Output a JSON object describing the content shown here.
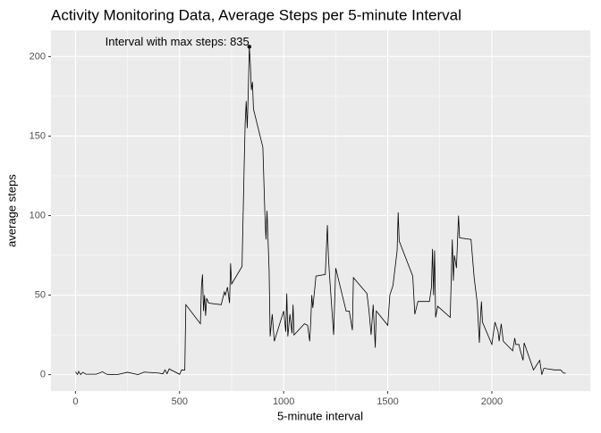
{
  "chart_data": {
    "type": "line",
    "title": "Activity Monitoring Data, Average Steps per 5-minute Interval",
    "x_label": "5-minute interval",
    "y_label": "average steps",
    "annotation": "Interval with max steps:  835",
    "max_point": {
      "x": 835,
      "y": 206.17
    },
    "x": [
      0,
      10,
      15,
      25,
      35,
      50,
      100,
      130,
      150,
      200,
      250,
      300,
      330,
      400,
      420,
      430,
      440,
      450,
      500,
      510,
      525,
      530,
      600,
      605,
      610,
      615,
      620,
      625,
      630,
      640,
      700,
      715,
      720,
      730,
      740,
      745,
      750,
      800,
      810,
      815,
      820,
      825,
      830,
      835,
      840,
      845,
      850,
      855,
      900,
      910,
      915,
      920,
      930,
      935,
      945,
      955,
      1000,
      1010,
      1015,
      1020,
      1030,
      1040,
      1045,
      1050,
      1100,
      1115,
      1125,
      1130,
      1135,
      1140,
      1150,
      1155,
      1200,
      1210,
      1215,
      1220,
      1240,
      1250,
      1300,
      1315,
      1330,
      1335,
      1400,
      1410,
      1420,
      1430,
      1440,
      1445,
      1500,
      1510,
      1525,
      1545,
      1550,
      1555,
      1620,
      1625,
      1630,
      1645,
      1700,
      1710,
      1715,
      1720,
      1725,
      1730,
      1740,
      1800,
      1810,
      1815,
      1820,
      1830,
      1840,
      1845,
      1900,
      1915,
      1930,
      1940,
      1945,
      1950,
      1955,
      2000,
      2015,
      2030,
      2035,
      2045,
      2055,
      2100,
      2110,
      2115,
      2130,
      2135,
      2150,
      2155,
      2200,
      2225,
      2230,
      2240,
      2250,
      2300,
      2315,
      2330,
      2345,
      2355
    ],
    "series": [
      {
        "name": "average steps",
        "color": "#000000",
        "values": [
          1.7,
          0.1,
          2,
          0,
          1.5,
          0.3,
          0.3,
          1.8,
          0.2,
          0,
          1.5,
          0,
          1.6,
          1,
          0.5,
          3,
          0.6,
          3.6,
          0.2,
          3,
          2.9,
          44,
          32,
          55,
          63,
          40,
          50,
          37,
          48,
          45,
          44,
          52,
          50,
          55,
          45,
          70,
          57,
          68,
          130,
          158,
          172,
          155,
          178,
          206.17,
          195,
          179,
          184,
          167,
          143,
          100,
          85,
          103,
          66,
          24,
          38,
          21,
          40,
          27,
          51,
          24,
          38,
          26,
          44,
          25,
          32,
          31,
          21,
          33,
          50,
          42,
          55,
          62,
          63,
          94,
          74,
          63,
          25,
          67,
          40,
          40,
          28,
          61,
          51,
          40,
          25,
          44,
          17,
          40,
          31,
          50,
          56,
          78,
          102,
          84,
          62,
          50,
          38,
          46,
          46,
          55,
          79,
          50,
          78,
          36,
          43,
          36,
          85,
          59,
          75,
          67,
          100,
          86,
          85,
          61,
          45,
          20,
          35,
          46,
          33,
          19,
          33,
          27,
          21,
          32,
          21,
          15,
          23,
          19,
          19,
          16,
          9,
          20,
          3,
          8,
          9,
          0,
          4,
          3,
          3,
          3,
          1,
          1
        ]
      }
    ],
    "xlim": [
      -117.75,
      2472.75
    ],
    "xticks": [
      0,
      500,
      1000,
      1500,
      2000
    ],
    "ylim": [
      -10.31,
      216.48
    ],
    "yticks": [
      0,
      50,
      100,
      150,
      200
    ],
    "grid": true,
    "minor_grid": true
  }
}
